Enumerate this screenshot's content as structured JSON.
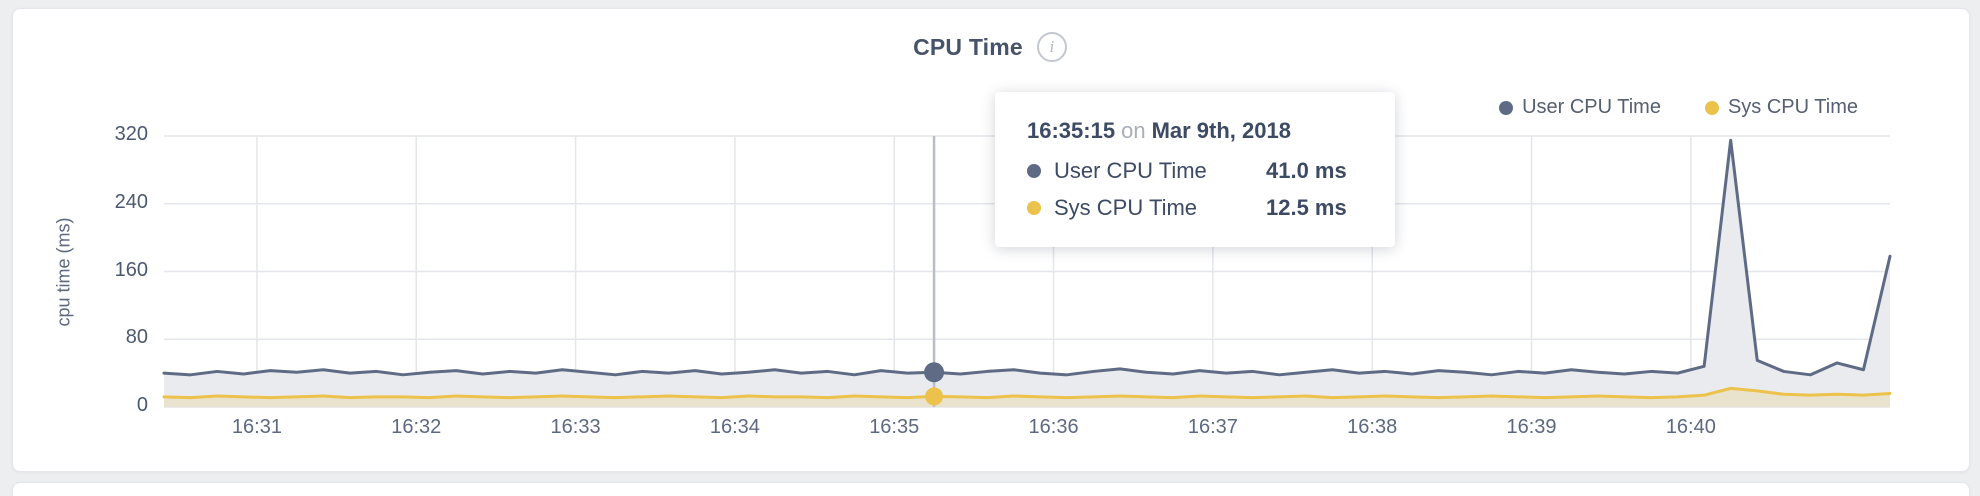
{
  "page": {
    "background": "#edeef0"
  },
  "header": {
    "title": "CPU Time",
    "info_glyph": "i"
  },
  "tooltip": {
    "time": "16:35:15",
    "on_word": "on",
    "date": "Mar 9th, 2018",
    "rows": [
      {
        "label": "User CPU Time",
        "value": "41.0 ms",
        "color": "#5f6b85"
      },
      {
        "label": "Sys CPU Time",
        "value": "12.5 ms",
        "color": "#edc24c"
      }
    ]
  },
  "chart_data": {
    "type": "area",
    "title": "CPU Time",
    "xlabel": "",
    "ylabel": "cpu time (ms)",
    "ylim": [
      0,
      320
    ],
    "y_ticks": [
      0,
      80,
      160,
      240,
      320
    ],
    "x_ticks": [
      "16:31",
      "16:32",
      "16:33",
      "16:34",
      "16:35",
      "16:36",
      "16:37",
      "16:38",
      "16:39",
      "16:40"
    ],
    "x_start": "16:30:25",
    "x_interval_seconds": 10,
    "grid": true,
    "legend_position": "top-right",
    "hover": {
      "index": 29,
      "time": "16:35:15",
      "date": "Mar 9th, 2018"
    },
    "series": [
      {
        "name": "User CPU Time",
        "color": "#5f6b85",
        "fill": "#e9ebef",
        "values": [
          40,
          38,
          42,
          39,
          43,
          41,
          44,
          40,
          42,
          38,
          41,
          43,
          39,
          42,
          40,
          44,
          41,
          38,
          42,
          40,
          43,
          39,
          41,
          44,
          40,
          42,
          38,
          43,
          40,
          41,
          39,
          42,
          44,
          40,
          38,
          42,
          45,
          41,
          39,
          43,
          40,
          42,
          38,
          41,
          44,
          40,
          42,
          39,
          43,
          41,
          38,
          42,
          40,
          44,
          41,
          39,
          42,
          40,
          48,
          315,
          55,
          42,
          38,
          52,
          44,
          178
        ]
      },
      {
        "name": "Sys CPU Time",
        "color": "#edc24c",
        "fill": "rgba(237,194,76,0.20)",
        "values": [
          12,
          11,
          13,
          12,
          11,
          12,
          13,
          11,
          12,
          12,
          11,
          13,
          12,
          11,
          12,
          13,
          12,
          11,
          12,
          13,
          12,
          11,
          13,
          12,
          12,
          11,
          13,
          12,
          11,
          12.5,
          12,
          11,
          13,
          12,
          11,
          12,
          13,
          12,
          11,
          13,
          12,
          11,
          12,
          13,
          11,
          12,
          13,
          12,
          11,
          12,
          13,
          12,
          11,
          12,
          13,
          12,
          11,
          12,
          14,
          22,
          19,
          15,
          14,
          15,
          14,
          16
        ]
      }
    ]
  }
}
